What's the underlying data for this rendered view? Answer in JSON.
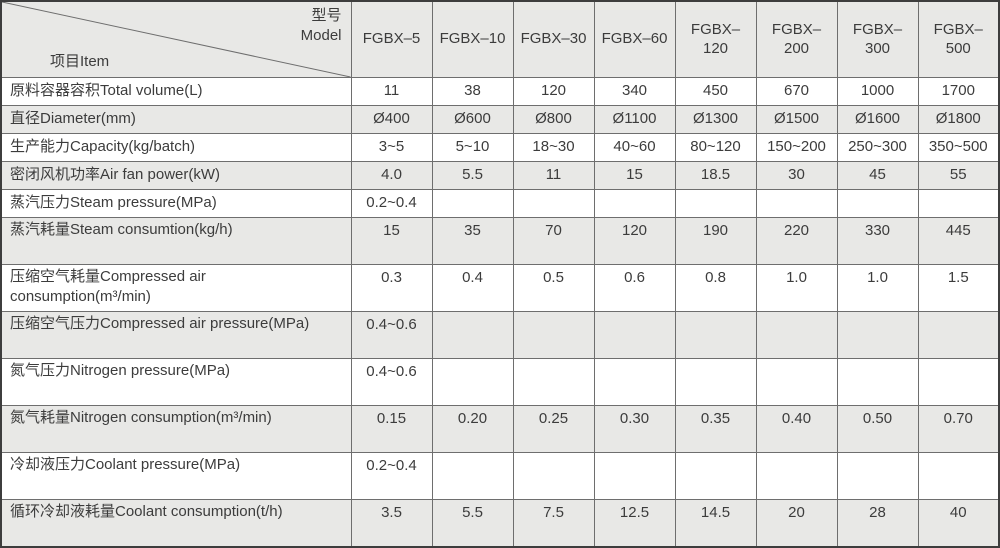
{
  "table": {
    "corner": {
      "model_zh": "型号",
      "model_en": "Model",
      "item": "项目Item"
    },
    "columns": [
      "FGBX–5",
      "FGBX–10",
      "FGBX–30",
      "FGBX–60",
      "FGBX–\n120",
      "FGBX–\n200",
      "FGBX–\n300",
      "FGBX–\n500"
    ],
    "rows": [
      {
        "label": "原料容器容积Total volume(L)",
        "values": [
          "11",
          "38",
          "120",
          "340",
          "450",
          "670",
          "1000",
          "1700"
        ]
      },
      {
        "label": "直径Diameter(mm)",
        "values": [
          "Ø400",
          "Ø600",
          "Ø800",
          "Ø1100",
          "Ø1300",
          "Ø1500",
          "Ø1600",
          "Ø1800"
        ]
      },
      {
        "label": "生产能力Capacity(kg/batch)",
        "values": [
          "3~5",
          "5~10",
          "18~30",
          "40~60",
          "80~120",
          "150~200",
          "250~300",
          "350~500"
        ]
      },
      {
        "label": "密闭风机功率Air fan power(kW)",
        "values": [
          "4.0",
          "5.5",
          "11",
          "15",
          "18.5",
          "30",
          "45",
          "55"
        ]
      },
      {
        "label": "蒸汽压力Steam pressure(MPa)",
        "values": [
          "0.2~0.4",
          "",
          "",
          "",
          "",
          "",
          "",
          ""
        ]
      },
      {
        "label": "蒸汽耗量Steam consumtion(kg/h)",
        "values": [
          "15",
          "35",
          "70",
          "120",
          "190",
          "220",
          "330",
          "445"
        ]
      },
      {
        "label": "压缩空气耗量Compressed air consumption(m³/min)",
        "values": [
          "0.3",
          "0.4",
          "0.5",
          "0.6",
          "0.8",
          "1.0",
          "1.0",
          "1.5"
        ]
      },
      {
        "label": "压缩空气压力Compressed air pressure(MPa)",
        "values": [
          "0.4~0.6",
          "",
          "",
          "",
          "",
          "",
          "",
          ""
        ]
      },
      {
        "label": "氮气压力Nitrogen pressure(MPa)",
        "values": [
          "0.4~0.6",
          "",
          "",
          "",
          "",
          "",
          "",
          ""
        ]
      },
      {
        "label": "氮气耗量Nitrogen consumption(m³/min)",
        "values": [
          "0.15",
          "0.20",
          "0.25",
          "0.30",
          "0.35",
          "0.40",
          "0.50",
          "0.70"
        ]
      },
      {
        "label": "冷却液压力Coolant pressure(MPa)",
        "values": [
          "0.2~0.4",
          "",
          "",
          "",
          "",
          "",
          "",
          ""
        ]
      },
      {
        "label": "循环冷却液耗量Coolant consumption(t/h)",
        "values": [
          "3.5",
          "5.5",
          "7.5",
          "12.5",
          "14.5",
          "20",
          "28",
          "40"
        ]
      }
    ]
  },
  "colors": {
    "row_shade": "#e8e8e6",
    "border_inner": "#6e6e6e",
    "border_outer": "#3d3d3d",
    "text": "#3c3c3c"
  }
}
